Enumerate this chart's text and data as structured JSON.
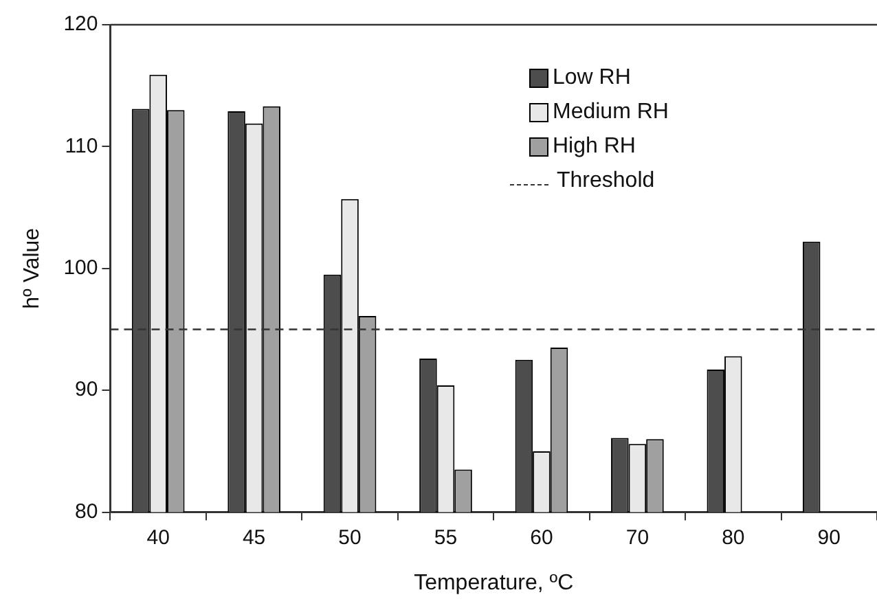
{
  "chart_data": {
    "type": "bar",
    "xlabel": "Temperature, ºC",
    "ylabel": "hº Value",
    "categories": [
      "40",
      "45",
      "50",
      "55",
      "60",
      "70",
      "80",
      "90"
    ],
    "series": [
      {
        "name": "Low RH",
        "color": "#4d4d4d",
        "values": [
          113.1,
          112.9,
          99.5,
          92.6,
          92.5,
          86.1,
          91.7,
          102.2
        ]
      },
      {
        "name": "Medium RH",
        "color": "#e8e8e8",
        "values": [
          115.9,
          111.9,
          105.7,
          90.4,
          85.0,
          85.6,
          92.8,
          null
        ]
      },
      {
        "name": "High RH",
        "color": "#a0a0a0",
        "values": [
          113.0,
          113.3,
          96.1,
          83.5,
          93.5,
          86.0,
          null,
          null
        ]
      }
    ],
    "ref_lines": [
      {
        "axis": "y",
        "value": 95,
        "label": "Threshold",
        "color": "#333333",
        "line_style": "dashed"
      }
    ],
    "ylim": [
      80,
      120
    ],
    "yticks": [
      80,
      90,
      100,
      110,
      120
    ],
    "grid": false,
    "legend": "top right"
  }
}
